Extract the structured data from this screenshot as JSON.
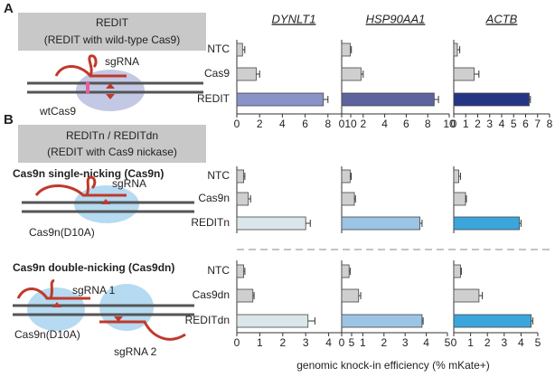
{
  "left_panel": {
    "a": {
      "label": "A",
      "title": "REDIT",
      "subtitle": "(REDIT with wild-type Cas9)",
      "sgrna": "sgRNA",
      "protein": "wtCas9"
    },
    "b": {
      "label": "B",
      "title": "REDITn / REDITdn",
      "subtitle": "(REDIT with Cas9 nickase)",
      "single": {
        "heading": "Cas9n single-nicking (Cas9n)",
        "sgrna": "sgRNA",
        "protein": "Cas9n(D10A)"
      },
      "double": {
        "heading": "Cas9n double-nicking (Cas9dn)",
        "sgrna1": "sgRNA 1",
        "sgrna2": "sgRNA 2",
        "protein": "Cas9n(D10A)"
      }
    }
  },
  "chart_data": [
    {
      "type": "hbar",
      "title": "DYNLT1",
      "categories": [
        "NTC",
        "Cas9",
        "REDIT"
      ],
      "values": [
        0.5,
        1.7,
        7.6
      ],
      "errors": [
        0.2,
        0.3,
        0.4
      ],
      "colors": [
        "#cfcfcf",
        "#cfcfcf",
        "#8a93c8"
      ],
      "xlim": [
        0,
        10
      ],
      "xticks": [
        0,
        2,
        4,
        6,
        8,
        10
      ]
    },
    {
      "type": "hbar",
      "title": "HSP90AA1",
      "values": [
        0.8,
        1.8,
        8.6
      ],
      "errors": [
        0.1,
        0.2,
        0.4
      ],
      "colors": [
        "#cfcfcf",
        "#cfcfcf",
        "#5c639e"
      ],
      "xlim": [
        0,
        10
      ],
      "xticks": [
        0,
        2,
        4,
        6,
        8,
        10
      ]
    },
    {
      "type": "hbar",
      "title": "ACTB",
      "values": [
        0.3,
        1.7,
        6.3
      ],
      "errors": [
        0.2,
        0.4,
        0.1
      ],
      "colors": [
        "#cfcfcf",
        "#cfcfcf",
        "#233584"
      ],
      "xlim": [
        0,
        8
      ],
      "xticks": [
        0,
        1,
        2,
        3,
        4,
        5,
        6,
        7,
        8
      ]
    },
    {
      "type": "hbar",
      "categories": [
        "NTC",
        "Cas9n",
        "REDITn"
      ],
      "values": [
        0.3,
        0.5,
        3.0
      ],
      "errors": [
        0.05,
        0.1,
        0.2
      ],
      "colors": [
        "#cfcfcf",
        "#cfcfcf",
        "#dbe6ea"
      ],
      "xlim": [
        0,
        5
      ]
    },
    {
      "type": "hbar",
      "values": [
        0.4,
        0.6,
        3.7
      ],
      "errors": [
        0.05,
        0.05,
        0.1
      ],
      "colors": [
        "#cfcfcf",
        "#cfcfcf",
        "#9cc4e4"
      ],
      "xlim": [
        0,
        5
      ]
    },
    {
      "type": "hbar",
      "values": [
        0.3,
        0.7,
        3.9
      ],
      "errors": [
        0.1,
        0.05,
        0.1
      ],
      "colors": [
        "#cfcfcf",
        "#cfcfcf",
        "#3aa6dc"
      ],
      "xlim": [
        0,
        5
      ]
    },
    {
      "type": "hbar",
      "categories": [
        "NTC",
        "Cas9dn",
        "REDITdn"
      ],
      "values": [
        0.3,
        0.7,
        3.1
      ],
      "errors": [
        0.05,
        0.05,
        0.3
      ],
      "colors": [
        "#cfcfcf",
        "#cfcfcf",
        "#dbe6ea"
      ],
      "xlim": [
        0,
        5
      ],
      "xticks": [
        0,
        1,
        2,
        3,
        4,
        5
      ]
    },
    {
      "type": "hbar",
      "values": [
        0.35,
        0.8,
        3.8
      ],
      "errors": [
        0.05,
        0.1,
        0.05
      ],
      "colors": [
        "#cfcfcf",
        "#cfcfcf",
        "#9cc4e4"
      ],
      "xlim": [
        0,
        5
      ],
      "xticks": [
        0,
        1,
        2,
        3,
        4,
        5
      ],
      "xlabel": "genomic knock-in efficiency (% mKate+)"
    },
    {
      "type": "hbar",
      "values": [
        0.4,
        1.5,
        4.6
      ],
      "errors": [
        0.05,
        0.2,
        0.1
      ],
      "colors": [
        "#cfcfcf",
        "#cfcfcf",
        "#3aa6dc"
      ],
      "xlim": [
        0,
        5
      ],
      "xticks": [
        0,
        1,
        2,
        3,
        4,
        5
      ]
    }
  ]
}
